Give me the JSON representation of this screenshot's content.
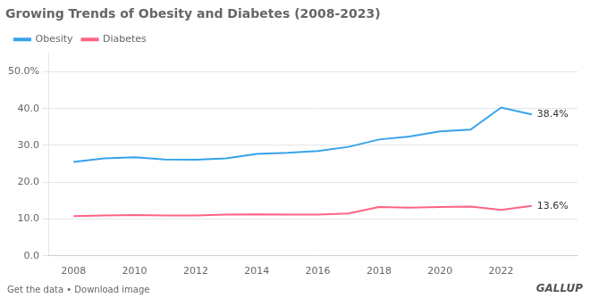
{
  "chart_data": {
    "type": "line",
    "title": "Growing Trends of Obesity and Diabetes (2008-2023)",
    "x": [
      2008,
      2009,
      2010,
      2011,
      2012,
      2013,
      2014,
      2015,
      2016,
      2017,
      2018,
      2019,
      2020,
      2021,
      2022,
      2023
    ],
    "series": [
      {
        "name": "Obesity",
        "values": [
          25.5,
          26.5,
          26.8,
          26.2,
          26.1,
          26.5,
          27.7,
          28.0,
          28.5,
          29.6,
          31.6,
          32.4,
          33.8,
          34.3,
          40.3,
          38.4
        ]
      },
      {
        "name": "Diabetes",
        "values": [
          10.8,
          11.0,
          11.1,
          11.0,
          11.0,
          11.2,
          11.3,
          11.2,
          11.2,
          11.5,
          13.3,
          13.1,
          13.3,
          13.4,
          12.5,
          13.6
        ]
      }
    ],
    "xlim": [
      2007.2,
      2024.5
    ],
    "xticks": [
      2008,
      2010,
      2012,
      2014,
      2016,
      2018,
      2020,
      2022
    ],
    "ylim": [
      0,
      55
    ],
    "yticks": [
      {
        "value": 0,
        "label": "0.0"
      },
      {
        "value": 10,
        "label": "10.0"
      },
      {
        "value": 20,
        "label": "20.0"
      },
      {
        "value": 30,
        "label": "30.0"
      },
      {
        "value": 40,
        "label": "40.0"
      },
      {
        "value": 50,
        "label": "50.0%"
      }
    ],
    "grid": true,
    "legend": "upper left",
    "annotations": [
      {
        "text": "38.4%",
        "x": 2023,
        "y": 38.4
      },
      {
        "text": "13.6%",
        "x": 2023,
        "y": 13.6
      },
      {
        "text": "Get the data • Download image"
      },
      {
        "text": "GALLUP"
      }
    ]
  }
}
